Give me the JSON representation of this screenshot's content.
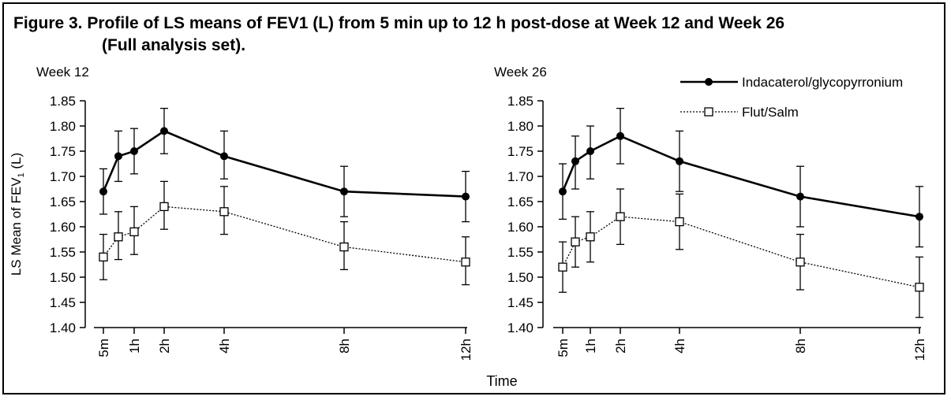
{
  "figure": {
    "title_line1": "Figure 3. Profile of LS means of FEV1 (L) from 5 min up to 12 h post-dose at Week 12 and Week 26",
    "title_line2": "(Full analysis set).",
    "xlabel": "Time",
    "ylabel_main": "LS Mean of FEV",
    "ylabel_sub": "1",
    "ylabel_unit": " (L)"
  },
  "legend": {
    "items": [
      {
        "label": "Indacaterol/glycopyrronium",
        "marker": "filled-circle",
        "line": "solid"
      },
      {
        "label": "Flut/Salm",
        "marker": "open-square",
        "line": "dotted"
      }
    ]
  },
  "chart_data": [
    {
      "type": "line",
      "title": "Week 12",
      "x": [
        "5m",
        "0.5h",
        "1h",
        "2h",
        "4h",
        "8h",
        "12h"
      ],
      "x_hours": [
        0.083,
        0.5,
        1,
        2,
        4,
        8,
        12
      ],
      "x_tick_labels": [
        "5m",
        "1h",
        "2h",
        "4h",
        "8h",
        "12h"
      ],
      "ylim": [
        1.4,
        1.85
      ],
      "y_ticks": [
        "1.40",
        "1.45",
        "1.50",
        "1.55",
        "1.60",
        "1.65",
        "1.70",
        "1.75",
        "1.80",
        "1.85"
      ],
      "series": [
        {
          "name": "Indacaterol/glycopyrronium",
          "values": [
            1.67,
            1.74,
            1.75,
            1.79,
            1.74,
            1.67,
            1.66
          ],
          "err_low": [
            1.625,
            1.69,
            1.705,
            1.745,
            1.695,
            1.62,
            1.61
          ],
          "err_high": [
            1.715,
            1.79,
            1.795,
            1.835,
            1.79,
            1.72,
            1.71
          ]
        },
        {
          "name": "Flut/Salm",
          "values": [
            1.54,
            1.58,
            1.59,
            1.64,
            1.63,
            1.56,
            1.53
          ],
          "err_low": [
            1.495,
            1.535,
            1.545,
            1.595,
            1.585,
            1.515,
            1.485
          ],
          "err_high": [
            1.585,
            1.63,
            1.64,
            1.69,
            1.68,
            1.61,
            1.58
          ]
        }
      ]
    },
    {
      "type": "line",
      "title": "Week 26",
      "x": [
        "5m",
        "0.5h",
        "1h",
        "2h",
        "4h",
        "8h",
        "12h"
      ],
      "x_hours": [
        0.083,
        0.5,
        1,
        2,
        4,
        8,
        12
      ],
      "x_tick_labels": [
        "5m",
        "1h",
        "2h",
        "4h",
        "8h",
        "12h"
      ],
      "ylim": [
        1.4,
        1.85
      ],
      "y_ticks": [
        "1.40",
        "1.45",
        "1.50",
        "1.55",
        "1.60",
        "1.65",
        "1.70",
        "1.75",
        "1.80",
        "1.85"
      ],
      "series": [
        {
          "name": "Indacaterol/glycopyrronium",
          "values": [
            1.67,
            1.73,
            1.75,
            1.78,
            1.73,
            1.66,
            1.62
          ],
          "err_low": [
            1.615,
            1.675,
            1.695,
            1.725,
            1.67,
            1.6,
            1.56
          ],
          "err_high": [
            1.725,
            1.78,
            1.8,
            1.835,
            1.79,
            1.72,
            1.68
          ]
        },
        {
          "name": "Flut/Salm",
          "values": [
            1.52,
            1.57,
            1.58,
            1.62,
            1.61,
            1.53,
            1.48
          ],
          "err_low": [
            1.47,
            1.52,
            1.53,
            1.565,
            1.555,
            1.475,
            1.42
          ],
          "err_high": [
            1.57,
            1.62,
            1.63,
            1.675,
            1.665,
            1.585,
            1.54
          ]
        }
      ]
    }
  ],
  "colors": {
    "ink": "#000000",
    "background": "#ffffff"
  }
}
